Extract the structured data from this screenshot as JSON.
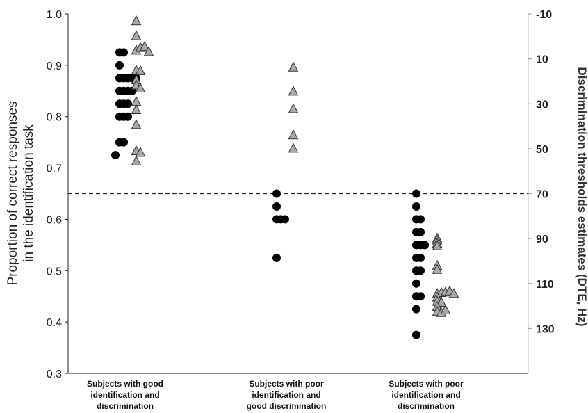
{
  "chart_data": {
    "type": "scatter",
    "ylabel_lines": [
      "Proportion of correct responses",
      "in the identification task"
    ],
    "ylabel2": "Discrimination thresholds estimates (DTE, Hz)",
    "ylim": [
      0.3,
      1.0
    ],
    "yticks": [
      "0.3",
      "0.4",
      "0.5",
      "0.6",
      "0.7",
      "0.8",
      "0.9",
      "1.0"
    ],
    "y2lim": [
      150,
      -10
    ],
    "y2ticks": [
      "-10",
      "10",
      "30",
      "50",
      "70",
      "90",
      "110",
      "130"
    ],
    "threshold": 0.65,
    "categories": [
      {
        "lines": [
          "Subjects with good",
          "identification and",
          "discrimination"
        ]
      },
      {
        "lines": [
          "Subjects with poor",
          "identification and",
          "good discrimination"
        ]
      },
      {
        "lines": [
          "Subjects with poor",
          "identification and",
          "discrimination"
        ]
      }
    ],
    "series": [
      {
        "marker": "circle",
        "color": "#000000",
        "points": [
          {
            "g": 0,
            "o": -0.8,
            "y": 0.925
          },
          {
            "g": 0,
            "o": -0.2,
            "y": 0.925
          },
          {
            "g": 0,
            "o": -0.8,
            "y": 0.9
          },
          {
            "g": 0,
            "o": -0.8,
            "y": 0.875
          },
          {
            "g": 0,
            "o": -0.2,
            "y": 0.875
          },
          {
            "g": 0,
            "o": 0.4,
            "y": 0.875
          },
          {
            "g": 0,
            "o": 1.0,
            "y": 0.875
          },
          {
            "g": 0,
            "o": 1.6,
            "y": 0.875
          },
          {
            "g": 0,
            "o": -0.8,
            "y": 0.85
          },
          {
            "g": 0,
            "o": -0.2,
            "y": 0.85
          },
          {
            "g": 0,
            "o": 0.4,
            "y": 0.85
          },
          {
            "g": 0,
            "o": 1.0,
            "y": 0.85
          },
          {
            "g": 0,
            "o": -0.8,
            "y": 0.825
          },
          {
            "g": 0,
            "o": -0.2,
            "y": 0.825
          },
          {
            "g": 0,
            "o": 0.4,
            "y": 0.825
          },
          {
            "g": 0,
            "o": -0.8,
            "y": 0.8
          },
          {
            "g": 0,
            "o": -0.2,
            "y": 0.8
          },
          {
            "g": 0,
            "o": 0.4,
            "y": 0.8
          },
          {
            "g": 0,
            "o": -0.8,
            "y": 0.75
          },
          {
            "g": 0,
            "o": -0.2,
            "y": 0.75
          },
          {
            "g": 0,
            "o": -1.4,
            "y": 0.725
          },
          {
            "g": 1,
            "o": -1.4,
            "y": 0.65
          },
          {
            "g": 1,
            "o": -1.4,
            "y": 0.625
          },
          {
            "g": 1,
            "o": -1.4,
            "y": 0.6
          },
          {
            "g": 1,
            "o": -0.8,
            "y": 0.6
          },
          {
            "g": 1,
            "o": -0.2,
            "y": 0.6
          },
          {
            "g": 1,
            "o": -1.4,
            "y": 0.525
          },
          {
            "g": 2,
            "o": -1.4,
            "y": 0.65
          },
          {
            "g": 2,
            "o": -1.4,
            "y": 0.625
          },
          {
            "g": 2,
            "o": -1.4,
            "y": 0.6
          },
          {
            "g": 2,
            "o": -0.8,
            "y": 0.6
          },
          {
            "g": 2,
            "o": -1.4,
            "y": 0.575
          },
          {
            "g": 2,
            "o": -0.8,
            "y": 0.575
          },
          {
            "g": 2,
            "o": -1.4,
            "y": 0.55
          },
          {
            "g": 2,
            "o": -0.8,
            "y": 0.55
          },
          {
            "g": 2,
            "o": -0.2,
            "y": 0.55
          },
          {
            "g": 2,
            "o": -1.4,
            "y": 0.525
          },
          {
            "g": 2,
            "o": -0.8,
            "y": 0.525
          },
          {
            "g": 2,
            "o": -1.4,
            "y": 0.5
          },
          {
            "g": 2,
            "o": -0.8,
            "y": 0.5
          },
          {
            "g": 2,
            "o": -1.4,
            "y": 0.475
          },
          {
            "g": 2,
            "o": -1.4,
            "y": 0.45
          },
          {
            "g": 2,
            "o": -0.8,
            "y": 0.45
          },
          {
            "g": 2,
            "o": -1.4,
            "y": 0.425
          },
          {
            "g": 2,
            "o": -1.4,
            "y": 0.375
          }
        ]
      },
      {
        "marker": "triangle",
        "color": "#a8a8a8",
        "points": [
          {
            "g": 0,
            "o": 1.6,
            "y": 0.986
          },
          {
            "g": 0,
            "o": 1.6,
            "y": 0.957
          },
          {
            "g": 0,
            "o": 1.6,
            "y": 0.929
          },
          {
            "g": 0,
            "o": 2.2,
            "y": 0.934
          },
          {
            "g": 0,
            "o": 2.8,
            "y": 0.936
          },
          {
            "g": 0,
            "o": 3.4,
            "y": 0.926
          },
          {
            "g": 0,
            "o": 1.6,
            "y": 0.89
          },
          {
            "g": 0,
            "o": 2.2,
            "y": 0.889
          },
          {
            "g": 0,
            "o": 1.6,
            "y": 0.871
          },
          {
            "g": 0,
            "o": 1.6,
            "y": 0.861
          },
          {
            "g": 0,
            "o": 2.2,
            "y": 0.855
          },
          {
            "g": 0,
            "o": 1.6,
            "y": 0.829
          },
          {
            "g": 0,
            "o": 1.6,
            "y": 0.813
          },
          {
            "g": 0,
            "o": 1.6,
            "y": 0.784
          },
          {
            "g": 0,
            "o": 1.6,
            "y": 0.733
          },
          {
            "g": 0,
            "o": 2.2,
            "y": 0.73
          },
          {
            "g": 0,
            "o": 1.6,
            "y": 0.713
          },
          {
            "g": 1,
            "o": 1.0,
            "y": 0.896
          },
          {
            "g": 1,
            "o": 1.0,
            "y": 0.849
          },
          {
            "g": 1,
            "o": 1.0,
            "y": 0.815
          },
          {
            "g": 1,
            "o": 1.0,
            "y": 0.764
          },
          {
            "g": 1,
            "o": 1.0,
            "y": 0.738
          },
          {
            "g": 2,
            "o": 1.6,
            "y": 0.563
          },
          {
            "g": 2,
            "o": 1.6,
            "y": 0.559
          },
          {
            "g": 2,
            "o": 1.6,
            "y": 0.553
          },
          {
            "g": 2,
            "o": 1.6,
            "y": 0.548
          },
          {
            "g": 2,
            "o": 1.6,
            "y": 0.51
          },
          {
            "g": 2,
            "o": 1.6,
            "y": 0.502
          },
          {
            "g": 2,
            "o": 1.6,
            "y": 0.455
          },
          {
            "g": 2,
            "o": 2.2,
            "y": 0.457
          },
          {
            "g": 2,
            "o": 2.8,
            "y": 0.458
          },
          {
            "g": 2,
            "o": 3.4,
            "y": 0.46
          },
          {
            "g": 2,
            "o": 4.0,
            "y": 0.455
          },
          {
            "g": 2,
            "o": 1.6,
            "y": 0.448
          },
          {
            "g": 2,
            "o": 1.6,
            "y": 0.44
          },
          {
            "g": 2,
            "o": 2.2,
            "y": 0.438
          },
          {
            "g": 2,
            "o": 1.6,
            "y": 0.43
          },
          {
            "g": 2,
            "o": 1.6,
            "y": 0.42
          },
          {
            "g": 2,
            "o": 2.2,
            "y": 0.418
          },
          {
            "g": 2,
            "o": 2.8,
            "y": 0.423
          }
        ]
      }
    ]
  }
}
